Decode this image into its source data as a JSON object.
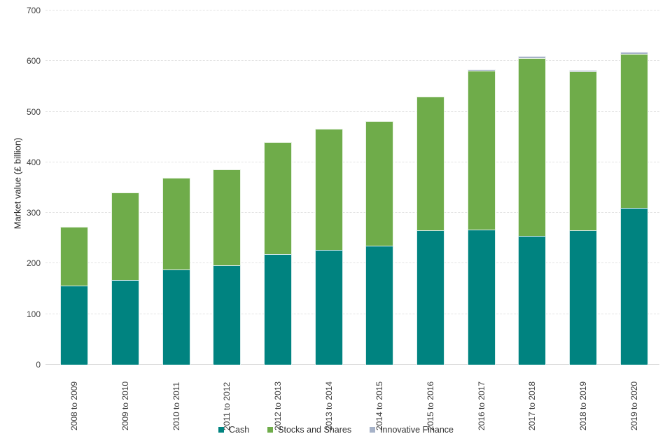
{
  "chart_data": {
    "type": "bar",
    "stacked": true,
    "title": "",
    "xlabel": "",
    "ylabel": "Market value (£ billion)",
    "ylim": [
      0,
      700
    ],
    "yticks": [
      0,
      100,
      200,
      300,
      400,
      500,
      600,
      700
    ],
    "grid": true,
    "legend_position": "bottom",
    "categories": [
      "2008 to 2009",
      "2009 to 2010",
      "2010 to 2011",
      "2011 to 2012",
      "2012 to 2013",
      "2013 to 2014",
      "2014 to 2015",
      "2015 to 2016",
      "2016 to 2017",
      "2017 to 2018",
      "2018 to 2019",
      "2019 to 2020"
    ],
    "series": [
      {
        "name": "Cash",
        "color": "#008380",
        "values": [
          157,
          168,
          188,
          196,
          219,
          227,
          235,
          266,
          267,
          254,
          266,
          310
        ]
      },
      {
        "name": "Stocks and Shares",
        "color": "#6fac4a",
        "values": [
          115,
          172,
          182,
          190,
          221,
          239,
          246,
          264,
          314,
          352,
          313,
          304
        ]
      },
      {
        "name": "Innovative Finance",
        "color": "#a6b2c8",
        "values": [
          0,
          0,
          0,
          0,
          0,
          0,
          0,
          0,
          3,
          4,
          4,
          5
        ]
      }
    ]
  },
  "colors": {
    "gridline": "#e2e2e2",
    "zero_line": "#d6d6d6",
    "text": "#404040"
  }
}
